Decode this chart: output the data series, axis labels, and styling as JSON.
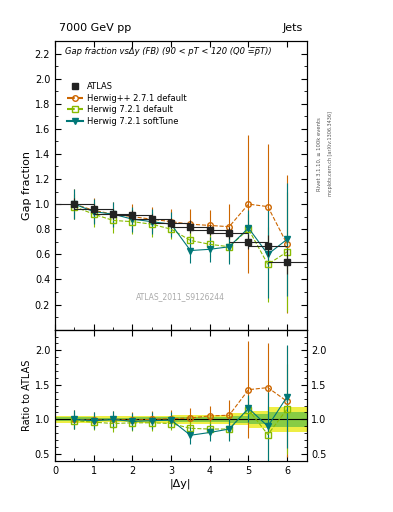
{
  "title_top": "7000 GeV pp",
  "title_right": "Jets",
  "main_title": "Gap fraction vsΔy (FB) (90 < pT < 120 (Q0 =̅p̅̅T))",
  "xlabel": "|Δy|",
  "ylabel_main": "Gap fraction",
  "ylabel_ratio": "Ratio to ATLAS",
  "watermark": "ATLAS_2011_S9126244",
  "right_label": "Rivet 3.1.10, ≥ 100k events",
  "right_label2": "mcplots.cern.ch [arXiv:1306.3436]",
  "x": [
    0.5,
    1.0,
    1.5,
    2.0,
    2.5,
    3.0,
    3.5,
    4.0,
    4.5,
    5.0,
    5.5,
    6.0
  ],
  "atlas_y": [
    1.0,
    0.96,
    0.92,
    0.91,
    0.88,
    0.85,
    0.82,
    0.79,
    0.77,
    0.7,
    0.67,
    0.54
  ],
  "atlas_yerr": [
    0.05,
    0.04,
    0.04,
    0.04,
    0.04,
    0.04,
    0.05,
    0.04,
    0.05,
    0.06,
    0.08,
    0.1
  ],
  "atlas_xerr": [
    0.5,
    0.5,
    0.5,
    0.5,
    0.5,
    0.5,
    0.5,
    0.5,
    0.5,
    0.5,
    0.5,
    0.5
  ],
  "hpp_y": [
    1.0,
    0.95,
    0.92,
    0.9,
    0.88,
    0.86,
    0.84,
    0.83,
    0.82,
    1.0,
    0.98,
    0.68
  ],
  "hpp_yerr": [
    0.12,
    0.1,
    0.1,
    0.1,
    0.1,
    0.1,
    0.12,
    0.12,
    0.18,
    0.55,
    0.5,
    0.55
  ],
  "h721d_y": [
    0.98,
    0.92,
    0.87,
    0.86,
    0.84,
    0.8,
    0.71,
    0.68,
    0.66,
    0.8,
    0.52,
    0.62
  ],
  "h721d_yerr": [
    0.1,
    0.1,
    0.1,
    0.1,
    0.1,
    0.08,
    0.1,
    0.1,
    0.12,
    0.12,
    0.3,
    0.48
  ],
  "h721s_y": [
    1.0,
    0.94,
    0.92,
    0.88,
    0.86,
    0.84,
    0.63,
    0.64,
    0.66,
    0.81,
    0.6,
    0.72
  ],
  "h721s_yerr": [
    0.12,
    0.1,
    0.1,
    0.1,
    0.1,
    0.1,
    0.1,
    0.1,
    0.14,
    0.14,
    0.35,
    0.45
  ],
  "hpp_color": "#cc6600",
  "h721d_color": "#88bb00",
  "h721s_color": "#007777",
  "atlas_color": "#222222",
  "ratio_hpp_y": [
    1.0,
    0.99,
    1.0,
    0.99,
    1.0,
    1.01,
    1.02,
    1.05,
    1.06,
    1.43,
    1.46,
    1.26
  ],
  "ratio_hpp_yerr": [
    0.14,
    0.12,
    0.12,
    0.12,
    0.12,
    0.12,
    0.14,
    0.14,
    0.22,
    0.7,
    0.65,
    0.8
  ],
  "ratio_h721d_y": [
    0.98,
    0.96,
    0.94,
    0.95,
    0.95,
    0.94,
    0.87,
    0.86,
    0.86,
    1.14,
    0.78,
    1.15
  ],
  "ratio_h721d_yerr": [
    0.12,
    0.12,
    0.12,
    0.12,
    0.12,
    0.1,
    0.12,
    0.12,
    0.16,
    0.18,
    0.42,
    0.65
  ],
  "ratio_h721s_y": [
    1.0,
    0.98,
    1.0,
    0.97,
    0.98,
    0.99,
    0.77,
    0.81,
    0.86,
    1.16,
    0.9,
    1.33
  ],
  "ratio_h721s_yerr": [
    0.14,
    0.12,
    0.12,
    0.12,
    0.12,
    0.12,
    0.12,
    0.12,
    0.18,
    0.2,
    0.5,
    0.75
  ],
  "ylim_main": [
    0.0,
    2.3
  ],
  "ylim_ratio": [
    0.4,
    2.3
  ],
  "xlim": [
    0.0,
    6.5
  ],
  "band_color_outer": "#eeee44",
  "band_color_inner": "#88cc44"
}
